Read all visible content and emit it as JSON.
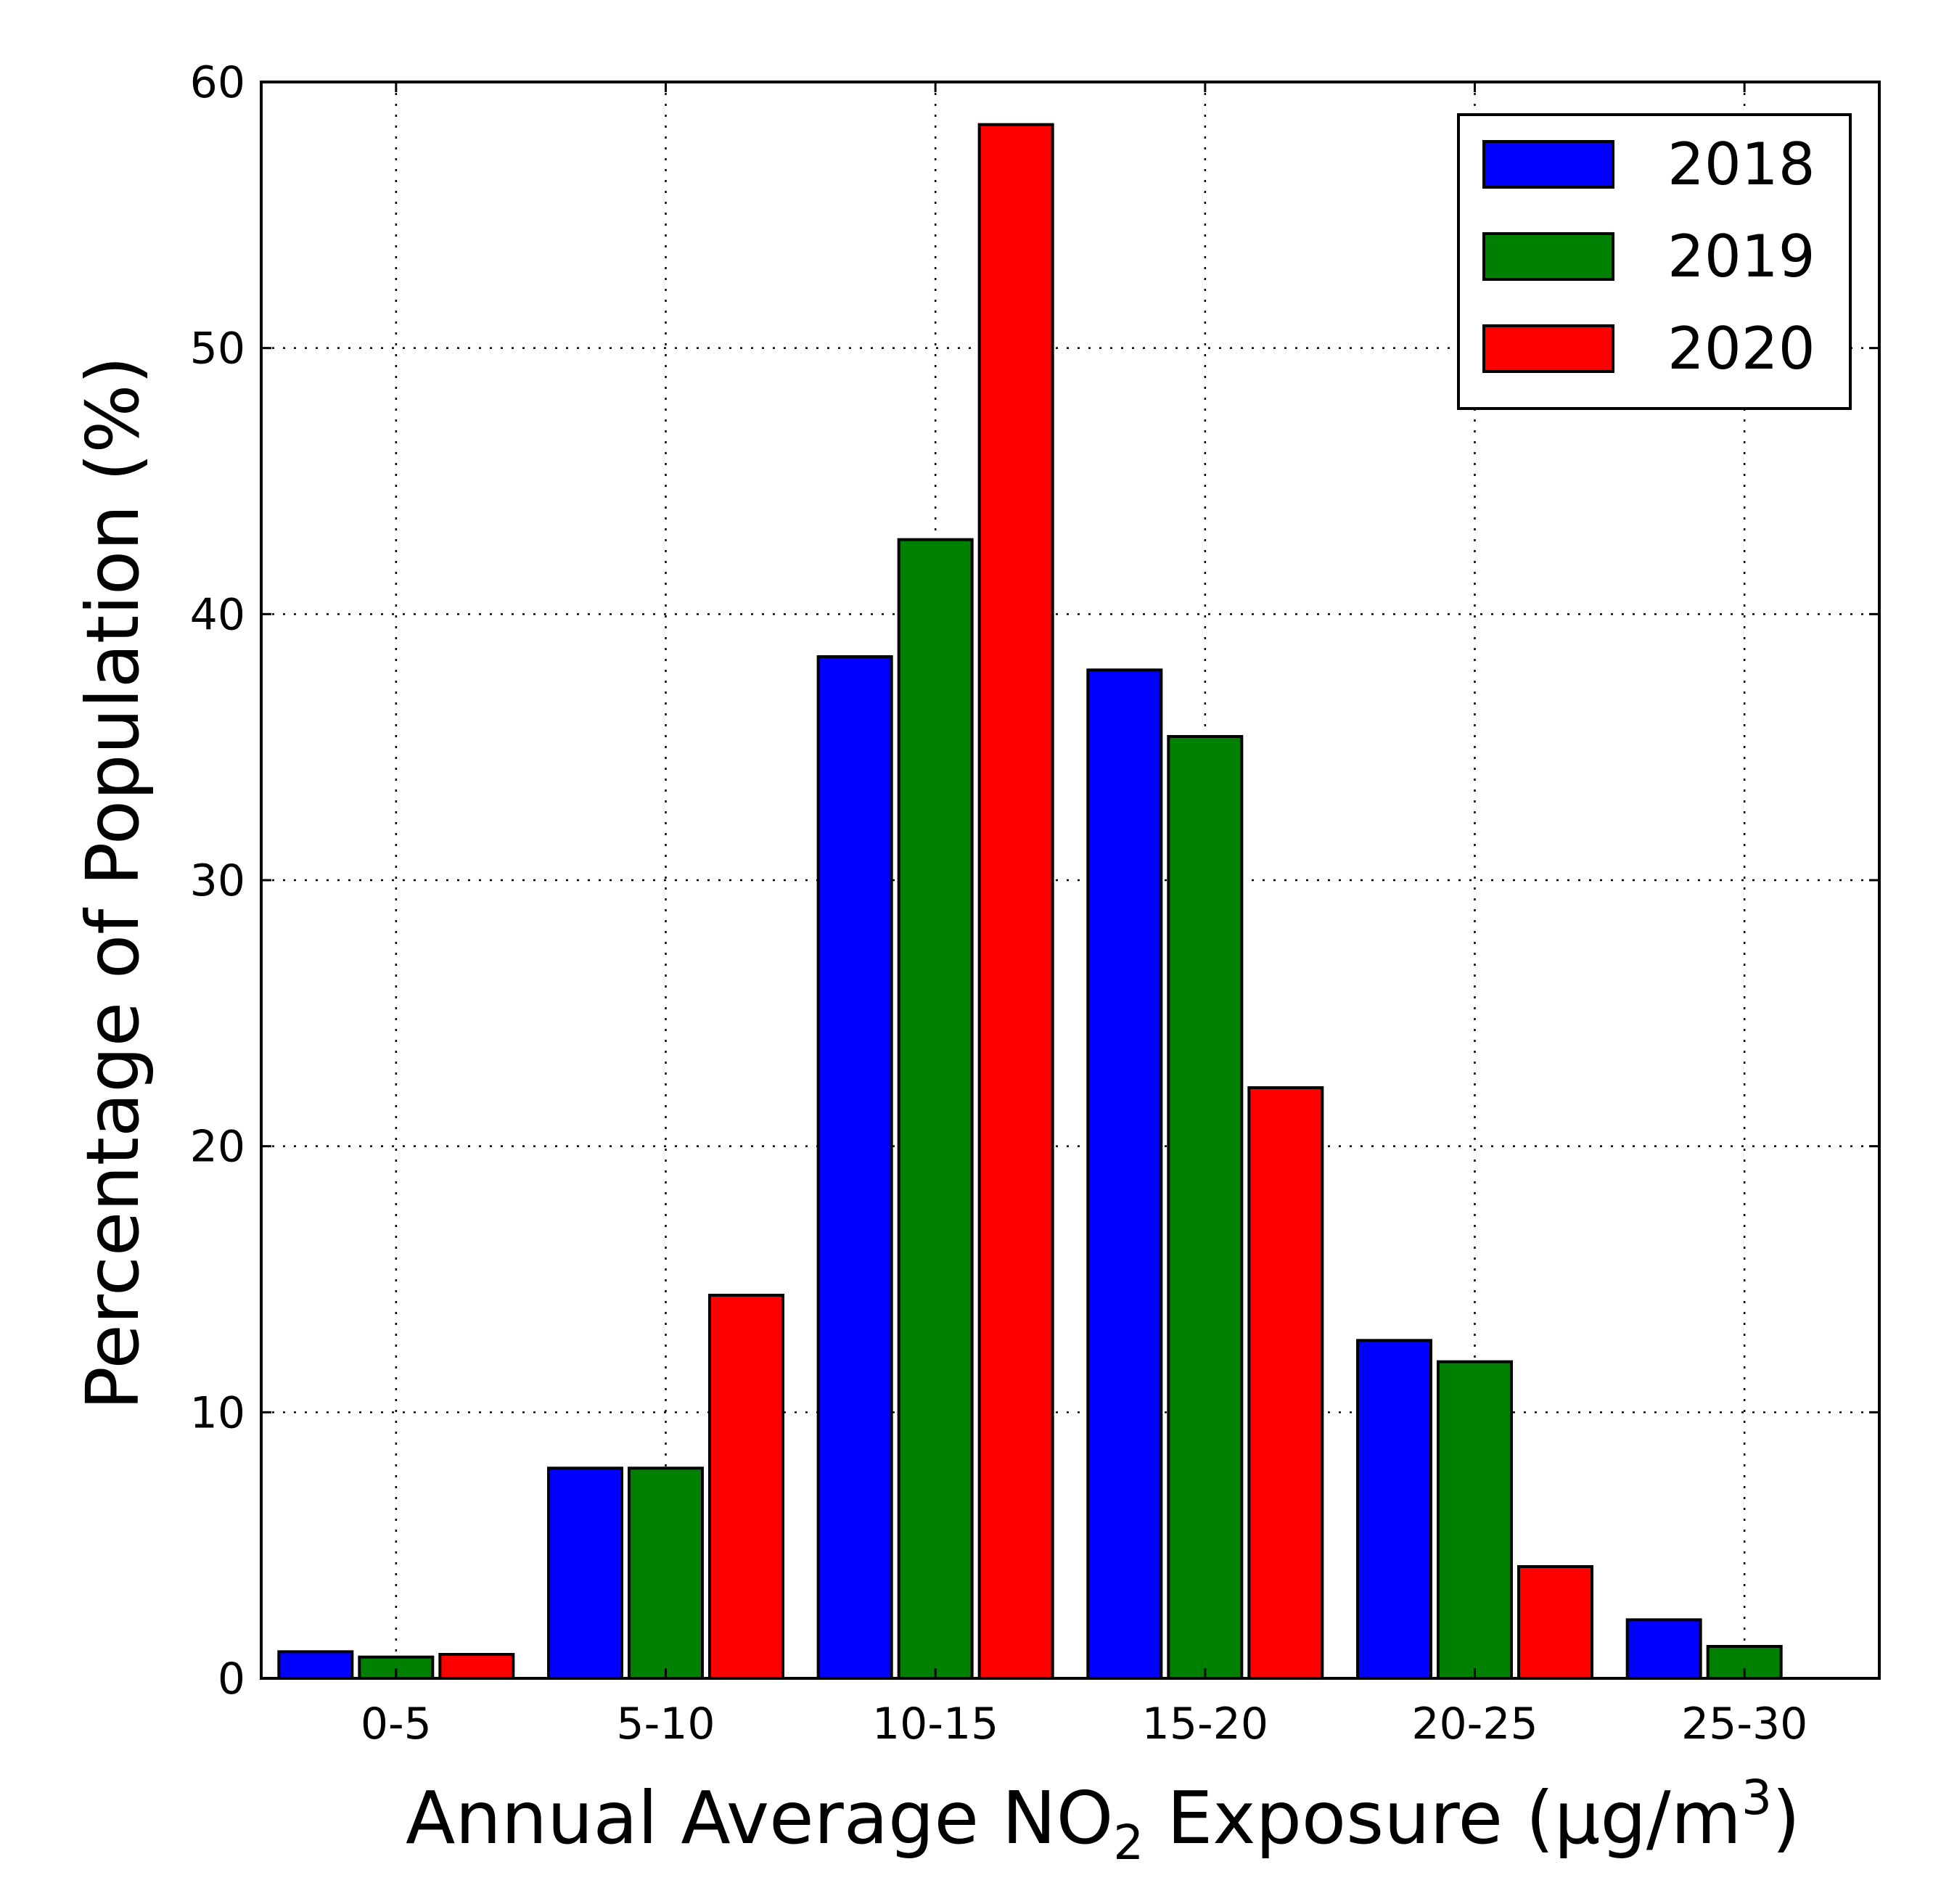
{
  "chart_data": {
    "type": "bar",
    "title": "",
    "categories": [
      "0-5",
      "5-10",
      "10-15",
      "15-20",
      "20-25",
      "25-30"
    ],
    "series": [
      {
        "name": "2018",
        "color": "#0000ff",
        "values": [
          1.0,
          7.9,
          38.4,
          37.9,
          12.7,
          2.2
        ]
      },
      {
        "name": "2019",
        "color": "#008000",
        "values": [
          0.8,
          7.9,
          42.8,
          35.4,
          11.9,
          1.2
        ]
      },
      {
        "name": "2020",
        "color": "#ff0000",
        "values": [
          0.9,
          14.4,
          58.4,
          22.2,
          4.2,
          0.0
        ]
      }
    ],
    "xlabel": {
      "prefix": "Annual Average NO",
      "subscript": "2",
      "middle": " Exposure (µg/m",
      "superscript": "3",
      "suffix": ")"
    },
    "ylabel": "Percentage of Population (%)",
    "ylim": [
      0,
      60
    ],
    "yticks": [
      0,
      10,
      20,
      30,
      40,
      50,
      60
    ],
    "grid": true,
    "legend_position": "top-right"
  }
}
